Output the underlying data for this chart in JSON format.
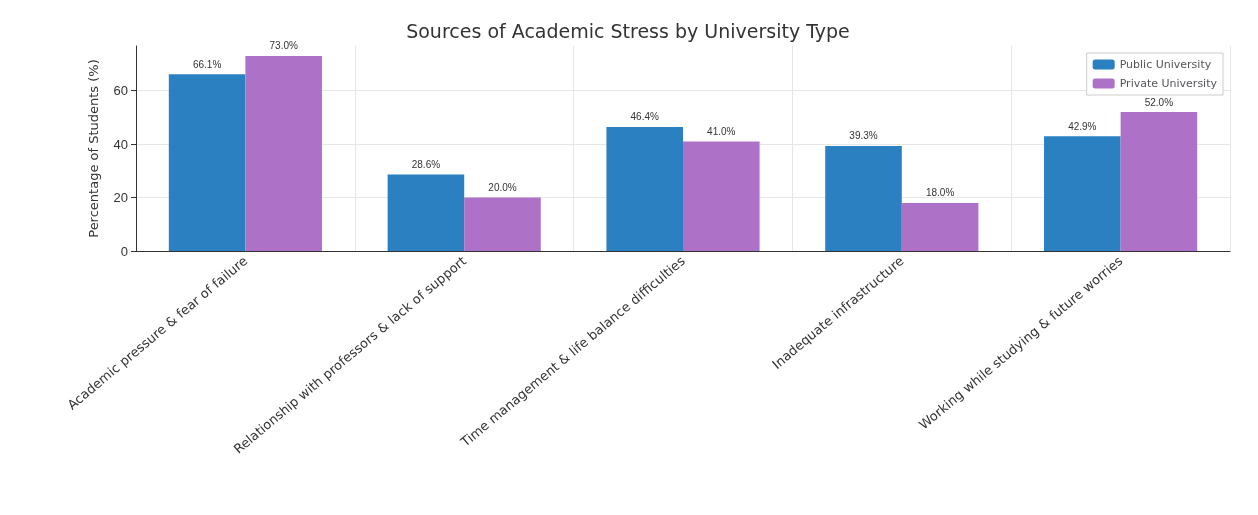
{
  "chart_data": {
    "type": "bar",
    "title": "Sources of Academic Stress by University Type",
    "ylabel": "Percentage of Students (%)",
    "categories": [
      "Academic pressure & fear of failure",
      "Relationship with professors & lack of support",
      "Time management & life balance difficulties",
      "Inadequate infrastructure",
      "Working while studying & future worries"
    ],
    "series": [
      {
        "name": "Public University",
        "color": "#2a80c0",
        "values": [
          66.1,
          28.6,
          46.4,
          39.3,
          42.9
        ],
        "value_labels": [
          "66.1%",
          "28.6%",
          "46.4%",
          "39.3%",
          "42.9%"
        ]
      },
      {
        "name": "Private University",
        "color": "#ad72c8",
        "values": [
          73.0,
          20.0,
          41.0,
          18.0,
          52.0
        ],
        "value_labels": [
          "73.0%",
          "20.0%",
          "41.0%",
          "18.0%",
          "52.0%"
        ]
      }
    ],
    "ylim": [
      0,
      76.7
    ],
    "yticks": [
      0,
      20,
      40,
      60
    ],
    "grid": true,
    "legend": "top right"
  }
}
